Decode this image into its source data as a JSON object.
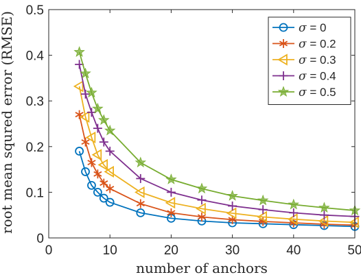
{
  "chart_data": {
    "type": "line",
    "title": "",
    "xlabel": "number of anchors",
    "ylabel": "root mean squred error (RMSE)",
    "xlim": [
      0,
      50
    ],
    "ylim": [
      0,
      0.5
    ],
    "xticks": [
      "0",
      "10",
      "20",
      "30",
      "40",
      "50"
    ],
    "yticks": [
      "0",
      "0.1",
      "0.2",
      "0.3",
      "0.4",
      "0.5"
    ],
    "grid": false,
    "legend_position": "top-right",
    "x": [
      5,
      6,
      7,
      8,
      9,
      10,
      15,
      20,
      25,
      30,
      35,
      40,
      45,
      50
    ],
    "series": [
      {
        "name": "σ = 0",
        "symbol": "σ",
        "value_text": " = 0",
        "color": "#0072BD",
        "marker": "circle",
        "values": [
          0.19,
          0.145,
          0.115,
          0.1,
          0.087,
          0.078,
          0.055,
          0.043,
          0.037,
          0.033,
          0.031,
          0.029,
          0.027,
          0.025
        ]
      },
      {
        "name": "σ = 0.2",
        "symbol": "σ",
        "value_text": " = 0.2",
        "color": "#D95319",
        "marker": "asterisk",
        "values": [
          0.27,
          0.21,
          0.165,
          0.14,
          0.12,
          0.108,
          0.075,
          0.055,
          0.046,
          0.04,
          0.036,
          0.033,
          0.03,
          0.028
        ]
      },
      {
        "name": "σ = 0.3",
        "symbol": "σ",
        "value_text": " = 0.3",
        "color": "#EDB120",
        "marker": "triangle-left",
        "values": [
          0.332,
          0.265,
          0.22,
          0.182,
          0.16,
          0.145,
          0.1,
          0.077,
          0.064,
          0.054,
          0.046,
          0.041,
          0.037,
          0.034
        ]
      },
      {
        "name": "σ = 0.4",
        "symbol": "σ",
        "value_text": " = 0.4",
        "color": "#7E2F8E",
        "marker": "plus",
        "values": [
          0.38,
          0.315,
          0.275,
          0.24,
          0.21,
          0.19,
          0.13,
          0.1,
          0.083,
          0.07,
          0.062,
          0.055,
          0.05,
          0.047
        ]
      },
      {
        "name": "σ = 0.5",
        "symbol": "σ",
        "value_text": " = 0.5",
        "color": "#77AC30",
        "marker": "pentagram",
        "values": [
          0.407,
          0.36,
          0.318,
          0.283,
          0.258,
          0.235,
          0.165,
          0.128,
          0.108,
          0.092,
          0.082,
          0.073,
          0.066,
          0.06
        ]
      }
    ]
  }
}
